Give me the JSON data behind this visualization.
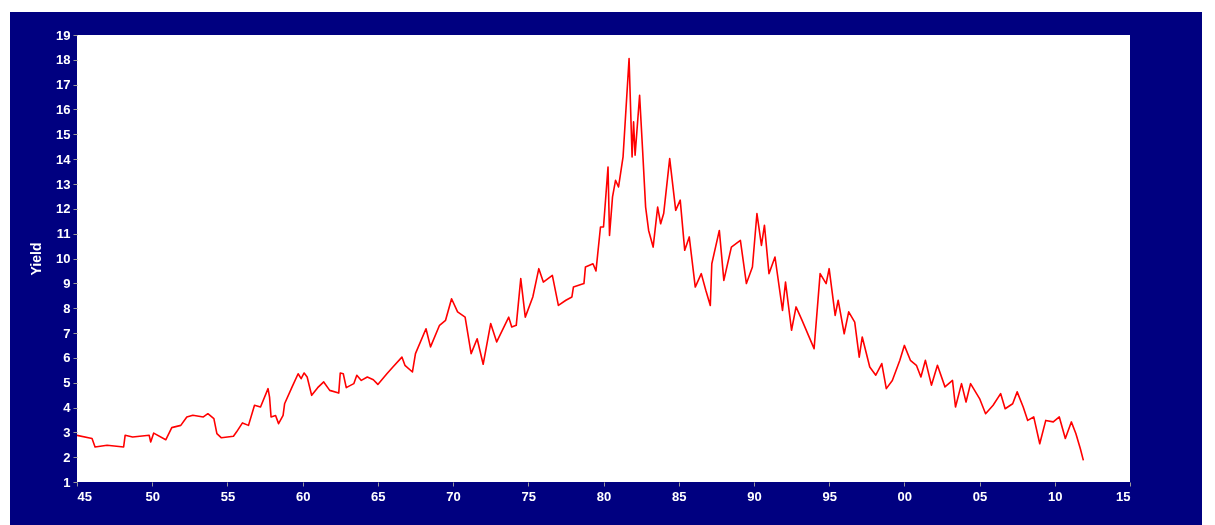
{
  "chart_data": {
    "type": "line",
    "ylabel": "Yield",
    "color": "#ff0000",
    "x": [
      1945.0,
      1946.0,
      1946.2,
      1947.0,
      1948.1,
      1948.2,
      1948.7,
      1949.8,
      1949.9,
      1950.1,
      1950.9,
      1951.3,
      1951.9,
      1952.3,
      1952.7,
      1953.4,
      1953.7,
      1954.1,
      1954.3,
      1954.6,
      1955.4,
      1955.6,
      1956.0,
      1956.4,
      1956.8,
      1957.2,
      1957.7,
      1957.8,
      1957.9,
      1958.2,
      1958.4,
      1958.7,
      1958.8,
      1959.3,
      1959.7,
      1959.9,
      1960.1,
      1960.3,
      1960.6,
      1961.0,
      1961.4,
      1961.8,
      1962.4,
      1962.5,
      1962.7,
      1962.9,
      1963.4,
      1963.6,
      1963.9,
      1964.3,
      1964.7,
      1965.0,
      1965.6,
      1966.0,
      1966.6,
      1966.8,
      1967.3,
      1967.5,
      1968.2,
      1968.5,
      1969.1,
      1969.5,
      1969.9,
      1970.3,
      1970.8,
      1971.2,
      1971.6,
      1972.0,
      1972.5,
      1972.9,
      1973.7,
      1973.9,
      1974.2,
      1974.5,
      1974.8,
      1975.3,
      1975.7,
      1976.0,
      1976.6,
      1977.0,
      1977.5,
      1977.9,
      1978.0,
      1978.7,
      1978.8,
      1979.3,
      1979.5,
      1979.8,
      1980.0,
      1980.3,
      1980.4,
      1980.6,
      1980.8,
      1981.0,
      1981.3,
      1981.7,
      1981.9,
      1982.0,
      1982.1,
      1982.4,
      1982.6,
      1982.8,
      1983.0,
      1983.3,
      1983.6,
      1983.8,
      1984.0,
      1984.4,
      1984.8,
      1985.1,
      1985.4,
      1985.7,
      1986.1,
      1986.5,
      1986.8,
      1987.1,
      1987.2,
      1987.7,
      1988.0,
      1988.5,
      1989.1,
      1989.5,
      1989.9,
      1990.2,
      1990.5,
      1990.7,
      1991.0,
      1991.4,
      1991.9,
      1992.1,
      1992.5,
      1992.8,
      1993.2,
      1994.0,
      1994.4,
      1994.8,
      1995.0,
      1995.4,
      1995.6,
      1996.0,
      1996.3,
      1996.7,
      1997.0,
      1997.2,
      1997.7,
      1998.1,
      1998.5,
      1998.8,
      1999.2,
      1999.7,
      2000.0,
      2000.4,
      2000.8,
      2001.1,
      2001.4,
      2001.8,
      2002.2,
      2002.7,
      2003.2,
      2003.4,
      2003.8,
      2004.1,
      2004.4,
      2005.0,
      2005.4,
      2005.9,
      2006.4,
      2006.7,
      2007.2,
      2007.5,
      2007.9,
      2008.2,
      2008.6,
      2009.0,
      2009.4,
      2009.9,
      2010.3,
      2010.7,
      2011.1,
      2011.4,
      2011.7,
      2011.9
    ],
    "values": [
      2.88,
      2.75,
      2.41,
      2.48,
      2.41,
      2.88,
      2.81,
      2.88,
      2.61,
      2.97,
      2.7,
      3.19,
      3.28,
      3.62,
      3.69,
      3.62,
      3.75,
      3.55,
      2.95,
      2.78,
      2.84,
      3.01,
      3.38,
      3.28,
      4.09,
      4.02,
      4.76,
      4.42,
      3.62,
      3.68,
      3.35,
      3.68,
      4.15,
      4.83,
      5.36,
      5.16,
      5.39,
      5.23,
      4.49,
      4.8,
      5.03,
      4.69,
      4.58,
      5.39,
      5.36,
      4.8,
      4.96,
      5.3,
      5.09,
      5.23,
      5.12,
      4.93,
      5.36,
      5.63,
      6.03,
      5.7,
      5.43,
      6.17,
      7.17,
      6.44,
      7.31,
      7.51,
      8.38,
      7.85,
      7.64,
      6.17,
      6.77,
      5.74,
      7.38,
      6.64,
      7.64,
      7.24,
      7.31,
      9.19,
      7.64,
      8.45,
      9.59,
      9.05,
      9.32,
      8.11,
      8.32,
      8.45,
      8.85,
      8.99,
      9.66,
      9.79,
      9.5,
      11.27,
      11.27,
      13.68,
      10.93,
      12.48,
      13.15,
      12.88,
      14.09,
      18.05,
      14.09,
      15.5,
      14.16,
      16.57,
      14.36,
      12.07,
      11.13,
      10.46,
      12.07,
      11.4,
      11.81,
      14.02,
      11.94,
      12.35,
      10.33,
      10.87,
      8.85,
      9.39,
      8.72,
      8.11,
      9.79,
      11.13,
      9.12,
      10.46,
      10.73,
      8.99,
      9.66,
      11.81,
      10.53,
      11.34,
      9.39,
      10.06,
      7.91,
      9.05,
      7.11,
      8.05,
      7.51,
      6.37,
      9.39,
      8.99,
      9.59,
      7.71,
      8.32,
      6.97,
      7.85,
      7.44,
      6.03,
      6.84,
      5.63,
      5.3,
      5.77,
      4.76,
      5.09,
      5.9,
      6.5,
      5.9,
      5.7,
      5.23,
      5.9,
      4.9,
      5.7,
      4.83,
      5.09,
      4.02,
      4.96,
      4.22,
      4.96,
      4.36,
      3.75,
      4.09,
      4.56,
      3.95,
      4.15,
      4.63,
      4.02,
      3.48,
      3.62,
      2.54,
      3.48,
      3.42,
      3.62,
      2.75,
      3.42,
      2.95,
      2.34,
      1.87
    ],
    "xlim": [
      1945,
      2015
    ],
    "xticks": [
      {
        "value": 1945,
        "label": "45"
      },
      {
        "value": 1950,
        "label": "50"
      },
      {
        "value": 1955,
        "label": "55"
      },
      {
        "value": 1960,
        "label": "60"
      },
      {
        "value": 1965,
        "label": "65"
      },
      {
        "value": 1970,
        "label": "70"
      },
      {
        "value": 1975,
        "label": "75"
      },
      {
        "value": 1980,
        "label": "80"
      },
      {
        "value": 1985,
        "label": "85"
      },
      {
        "value": 1990,
        "label": "90"
      },
      {
        "value": 1995,
        "label": "95"
      },
      {
        "value": 2000,
        "label": "00"
      },
      {
        "value": 2005,
        "label": "05"
      },
      {
        "value": 2010,
        "label": "10"
      },
      {
        "value": 2015,
        "label": "15"
      }
    ],
    "ylim": [
      1,
      19
    ],
    "yticks": [
      1,
      2,
      3,
      4,
      5,
      6,
      7,
      8,
      9,
      10,
      11,
      12,
      13,
      14,
      15,
      16,
      17,
      18,
      19
    ]
  }
}
